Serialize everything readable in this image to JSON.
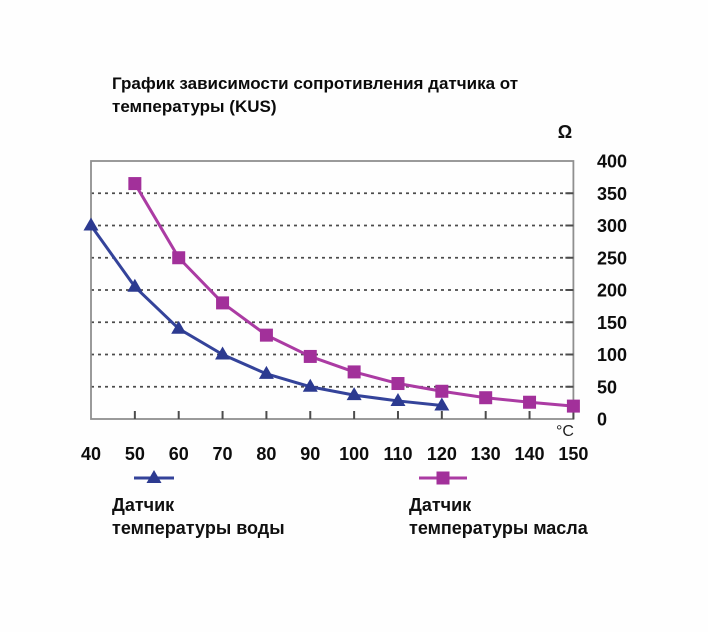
{
  "title": {
    "line1": "График зависимости сопротивления датчика от",
    "line2": "температуры (KUS)"
  },
  "axes": {
    "y_unit": "Ω",
    "x_unit": "°C"
  },
  "legend": {
    "water": {
      "line1": "Датчик",
      "line2": "температуры воды"
    },
    "oil": {
      "line1": "Датчик",
      "line2": "температуры масла"
    }
  },
  "colors": {
    "grid": "#4c4c4c",
    "border": "#8f8f8f",
    "tick": "#4c4c4c",
    "text": "#0d0d0d"
  },
  "chart_data": {
    "type": "line",
    "title": "График зависимости сопротивления датчика от температуры (KUS)",
    "xlabel": "°C",
    "ylabel": "Ω",
    "xlim": [
      40,
      150
    ],
    "ylim": [
      0,
      400
    ],
    "x_ticks": [
      40,
      50,
      60,
      70,
      80,
      90,
      100,
      110,
      120,
      130,
      140,
      150
    ],
    "y_ticks": [
      0,
      50,
      100,
      150,
      200,
      250,
      300,
      350,
      400
    ],
    "grid": "horizontal dotted",
    "legend_position": "bottom",
    "series": [
      {
        "name": "Датчик температуры воды",
        "marker": "triangle",
        "color": "#2c3a90",
        "line_color": "#34439a",
        "x": [
          40,
          50,
          60,
          70,
          80,
          90,
          100,
          110,
          120
        ],
        "values": [
          300,
          205,
          140,
          100,
          70,
          50,
          37,
          28,
          21
        ]
      },
      {
        "name": "Датчик температуры масла",
        "marker": "square",
        "color": "#a2309a",
        "line_color": "#ab3ba3",
        "x": [
          50,
          60,
          70,
          80,
          90,
          100,
          110,
          120,
          130,
          140,
          150
        ],
        "values": [
          365,
          250,
          180,
          130,
          97,
          73,
          55,
          43,
          33,
          26,
          20
        ]
      }
    ]
  }
}
